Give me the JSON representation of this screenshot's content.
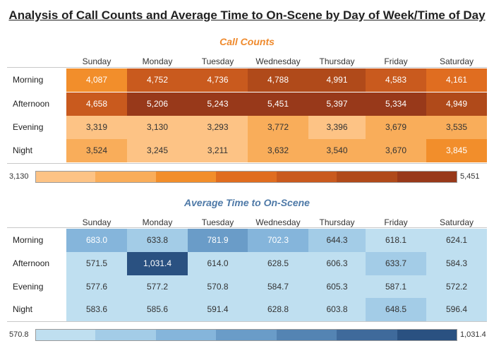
{
  "title": "Analysis of Call Counts and Average Time to On-Scene by Day of Week/Time of Day",
  "chart_data": [
    {
      "type": "heatmap",
      "title": "Call Counts",
      "columns": [
        "Sunday",
        "Monday",
        "Tuesday",
        "Wednesday",
        "Thursday",
        "Friday",
        "Saturday"
      ],
      "rows": [
        "Morning",
        "Afternoon",
        "Evening",
        "Night"
      ],
      "values": [
        [
          4087,
          4752,
          4736,
          4788,
          4991,
          4583,
          4161
        ],
        [
          4658,
          5206,
          5243,
          5451,
          5397,
          5334,
          4949
        ],
        [
          3319,
          3130,
          3293,
          3772,
          3396,
          3679,
          3535
        ],
        [
          3524,
          3245,
          3211,
          3632,
          3540,
          3670,
          3845
        ]
      ],
      "labels": [
        [
          "4,087",
          "4,752",
          "4,736",
          "4,788",
          "4,991",
          "4,583",
          "4,161"
        ],
        [
          "4,658",
          "5,206",
          "5,243",
          "5,451",
          "5,397",
          "5,334",
          "4,949"
        ],
        [
          "3,319",
          "3,130",
          "3,293",
          "3,772",
          "3,396",
          "3,679",
          "3,535"
        ],
        [
          "3,524",
          "3,245",
          "3,211",
          "3,632",
          "3,540",
          "3,670",
          "3,845"
        ]
      ],
      "min": 3130,
      "max": 5451,
      "min_label": "3,130",
      "max_label": "5,451",
      "palette": [
        "#fdc385",
        "#f9ad5a",
        "#f28e2b",
        "#e06d20",
        "#c95a1e",
        "#b04a1a",
        "#98391a"
      ],
      "dark_text_steps": 2
    },
    {
      "type": "heatmap",
      "title": "Average Time to On-Scene",
      "columns": [
        "Sunday",
        "Monday",
        "Tuesday",
        "Wednesday",
        "Thursday",
        "Friday",
        "Saturday"
      ],
      "rows": [
        "Morning",
        "Afternoon",
        "Evening",
        "Night"
      ],
      "values": [
        [
          683.0,
          633.8,
          781.9,
          702.3,
          644.3,
          618.1,
          624.1
        ],
        [
          571.5,
          1031.4,
          614.0,
          628.5,
          606.3,
          633.7,
          584.3
        ],
        [
          577.6,
          577.2,
          570.8,
          584.7,
          605.3,
          587.1,
          572.2
        ],
        [
          583.6,
          585.6,
          591.4,
          628.8,
          603.8,
          648.5,
          596.4
        ]
      ],
      "labels": [
        [
          "683.0",
          "633.8",
          "781.9",
          "702.3",
          "644.3",
          "618.1",
          "624.1"
        ],
        [
          "571.5",
          "1,031.4",
          "614.0",
          "628.5",
          "606.3",
          "633.7",
          "584.3"
        ],
        [
          "577.6",
          "577.2",
          "570.8",
          "584.7",
          "605.3",
          "587.1",
          "572.2"
        ],
        [
          "583.6",
          "585.6",
          "591.4",
          "628.8",
          "603.8",
          "648.5",
          "596.4"
        ]
      ],
      "min": 570.8,
      "max": 1031.4,
      "min_label": "570.8",
      "max_label": "1,031.4",
      "palette": [
        "#bfdff0",
        "#a3cce7",
        "#85b5db",
        "#6a9cc8",
        "#5484b3",
        "#3f6a9b",
        "#2a5181"
      ],
      "dark_text_steps": 2,
      "boundaries": [
        570.8,
        630,
        680,
        740,
        800,
        900,
        970,
        1031.4
      ]
    }
  ]
}
